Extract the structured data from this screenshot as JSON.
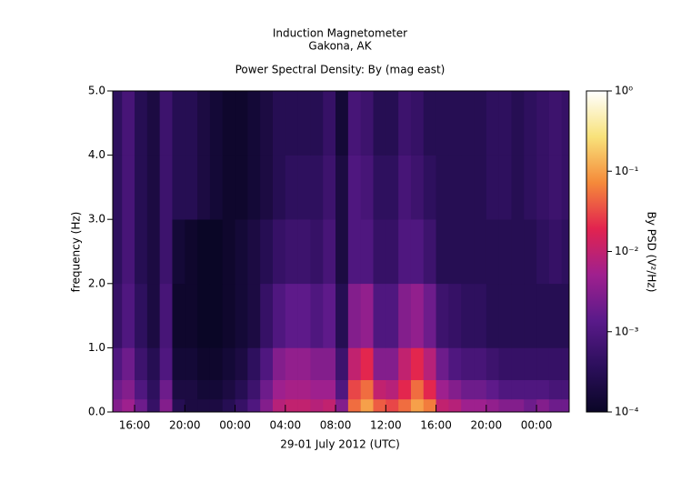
{
  "chart_data": {
    "type": "heatmap",
    "title": "Induction Magnetometer",
    "subtitle": "Gakona, AK",
    "plot_title": "Power Spectral Density: By (mag east)",
    "xlabel": "29-01 July 2012 (UTC)",
    "ylabel": "frequency (Hz)",
    "colorbar_label": "By PSD (V²/Hz)",
    "xlim": [
      14.26,
      50.6
    ],
    "xticks": [
      {
        "value": 16,
        "label": "16:00"
      },
      {
        "value": 20,
        "label": "20:00"
      },
      {
        "value": 24,
        "label": "00:00"
      },
      {
        "value": 28,
        "label": "04:00"
      },
      {
        "value": 32,
        "label": "08:00"
      },
      {
        "value": 36,
        "label": "12:00"
      },
      {
        "value": 40,
        "label": "16:00"
      },
      {
        "value": 44,
        "label": "20:00"
      },
      {
        "value": 48,
        "label": "00:00"
      }
    ],
    "ylim": [
      0,
      5
    ],
    "yticks": [
      {
        "value": 0,
        "label": "0.0"
      },
      {
        "value": 1,
        "label": "1.0"
      },
      {
        "value": 2,
        "label": "2.0"
      },
      {
        "value": 3,
        "label": "3.0"
      },
      {
        "value": 4,
        "label": "4.0"
      },
      {
        "value": 5,
        "label": "5.0"
      }
    ],
    "clim": [
      0.0001,
      1
    ],
    "clog": true,
    "cticks": [
      {
        "value": 0.0001,
        "label": "10⁻⁴"
      },
      {
        "value": 0.001,
        "label": "10⁻³"
      },
      {
        "value": 0.01,
        "label": "10⁻²"
      },
      {
        "value": 0.1,
        "label": "10⁻¹"
      },
      {
        "value": 1,
        "label": "10⁰"
      }
    ],
    "colormap": [
      "#0a0626",
      "#2c0f5c",
      "#5a1a8a",
      "#a0208e",
      "#e2234f",
      "#f58a3a",
      "#f8e27a",
      "#ffffff"
    ],
    "x_bins": [
      14,
      15,
      16,
      17,
      18,
      19,
      20,
      21,
      22,
      23,
      24,
      25,
      26,
      27,
      28,
      29,
      30,
      31,
      32,
      33,
      34,
      35,
      36,
      37,
      38,
      39,
      40,
      41,
      42,
      43,
      44,
      45,
      46,
      47,
      48,
      49,
      50,
      51
    ],
    "y_bins": [
      0,
      0.2,
      0.5,
      1,
      2,
      3,
      4,
      5
    ],
    "z": [
      [
        0.003,
        0.005,
        0.002,
        0.0005,
        0.003,
        0.0003,
        0.0002,
        0.0002,
        0.0002,
        0.0003,
        0.0005,
        0.001,
        0.003,
        0.008,
        0.01,
        0.01,
        0.008,
        0.01,
        0.003,
        0.05,
        0.1,
        0.04,
        0.03,
        0.05,
        0.1,
        0.06,
        0.01,
        0.008,
        0.005,
        0.005,
        0.004,
        0.003,
        0.003,
        0.002,
        0.003,
        0.002,
        0.002
      ],
      [
        0.002,
        0.003,
        0.001,
        0.0004,
        0.002,
        0.0002,
        0.0002,
        0.00015,
        0.00015,
        0.0002,
        0.0003,
        0.0006,
        0.002,
        0.005,
        0.006,
        0.006,
        0.005,
        0.005,
        0.001,
        0.03,
        0.05,
        0.01,
        0.008,
        0.02,
        0.05,
        0.02,
        0.005,
        0.003,
        0.002,
        0.002,
        0.0015,
        0.001,
        0.001,
        0.001,
        0.001,
        0.0008,
        0.0008
      ],
      [
        0.001,
        0.002,
        0.0006,
        0.0003,
        0.001,
        0.00015,
        0.00015,
        0.00012,
        0.00012,
        0.00015,
        0.0002,
        0.0004,
        0.001,
        0.003,
        0.004,
        0.004,
        0.003,
        0.003,
        0.0006,
        0.01,
        0.02,
        0.003,
        0.003,
        0.01,
        0.02,
        0.008,
        0.002,
        0.001,
        0.0008,
        0.0008,
        0.0006,
        0.0005,
        0.0005,
        0.0005,
        0.0005,
        0.0005,
        0.0005
      ],
      [
        0.0005,
        0.001,
        0.0004,
        0.0002,
        0.0008,
        0.00012,
        0.00012,
        0.0001,
        0.0001,
        0.00012,
        0.00015,
        0.0002,
        0.0005,
        0.001,
        0.0015,
        0.0015,
        0.001,
        0.0015,
        0.0003,
        0.003,
        0.004,
        0.001,
        0.001,
        0.003,
        0.004,
        0.002,
        0.0006,
        0.0005,
        0.0004,
        0.0004,
        0.0003,
        0.0003,
        0.0003,
        0.0003,
        0.0003,
        0.0003,
        0.0003
      ],
      [
        0.0004,
        0.0008,
        0.0003,
        0.0002,
        0.0006,
        0.00015,
        0.00012,
        0.0001,
        0.0001,
        0.00012,
        0.00015,
        0.0002,
        0.0003,
        0.0005,
        0.0006,
        0.0006,
        0.0005,
        0.0008,
        0.0002,
        0.001,
        0.001,
        0.0005,
        0.0005,
        0.001,
        0.001,
        0.0006,
        0.0003,
        0.0003,
        0.0003,
        0.0003,
        0.0003,
        0.0003,
        0.0003,
        0.0003,
        0.0004,
        0.0005,
        0.0004
      ],
      [
        0.0004,
        0.0008,
        0.0003,
        0.0002,
        0.0006,
        0.0003,
        0.0003,
        0.0002,
        0.00015,
        0.00012,
        0.00012,
        0.00015,
        0.0002,
        0.0003,
        0.0004,
        0.0004,
        0.0004,
        0.0006,
        0.0002,
        0.001,
        0.0008,
        0.0004,
        0.0004,
        0.0008,
        0.0006,
        0.0004,
        0.0003,
        0.0003,
        0.0003,
        0.0003,
        0.0004,
        0.0004,
        0.0003,
        0.0004,
        0.0005,
        0.0006,
        0.0005
      ],
      [
        0.0004,
        0.0008,
        0.0003,
        0.0002,
        0.0006,
        0.0003,
        0.0003,
        0.0002,
        0.00015,
        0.00012,
        0.00012,
        0.00015,
        0.0002,
        0.0003,
        0.0003,
        0.0003,
        0.0003,
        0.0005,
        0.00015,
        0.0008,
        0.0006,
        0.0003,
        0.0003,
        0.0006,
        0.0005,
        0.0003,
        0.0003,
        0.0003,
        0.0003,
        0.0003,
        0.0004,
        0.0004,
        0.0003,
        0.0004,
        0.0005,
        0.0006,
        0.0005
      ]
    ]
  }
}
